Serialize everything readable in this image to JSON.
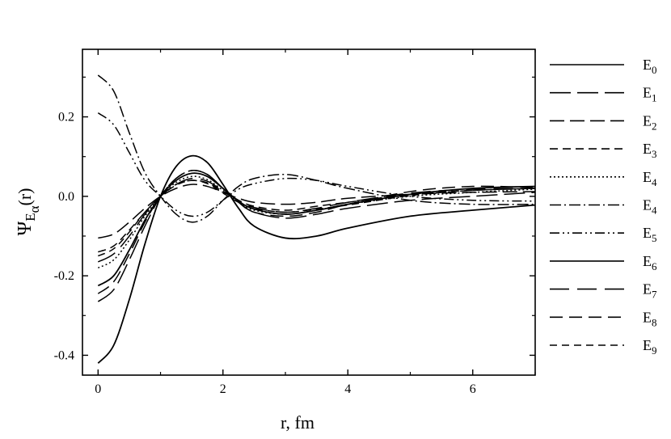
{
  "chart_data": {
    "type": "line",
    "title": "",
    "xlabel": "r, fm",
    "ylabel": "Ψ",
    "ylabel_sub": "E",
    "ylabel_subsub": "α",
    "ylabel_arg": "(r)",
    "xlim": [
      -0.25,
      7.0
    ],
    "ylim": [
      -0.45,
      0.37
    ],
    "xticks": [
      0,
      2,
      4,
      6
    ],
    "xtick_labels": [
      "0",
      "2",
      "4",
      "6"
    ],
    "yticks": [
      -0.4,
      -0.2,
      0.0,
      0.2
    ],
    "ytick_labels": [
      "-0.4",
      "-0.2",
      "0.0",
      "0.2"
    ],
    "grid": false,
    "legend_position": "right",
    "series": [
      {
        "name": "E",
        "sub": "0",
        "dash": "",
        "x": [
          0,
          0.25,
          0.5,
          0.75,
          1.0,
          1.25,
          1.5,
          1.75,
          2.0,
          2.25,
          2.5,
          3.0,
          3.5,
          4.0,
          5.0,
          6.0,
          7.0
        ],
        "values": [
          -0.42,
          -0.375,
          -0.26,
          -0.12,
          0.0,
          0.075,
          0.102,
          0.085,
          0.03,
          -0.03,
          -0.075,
          -0.105,
          -0.1,
          -0.08,
          -0.05,
          -0.035,
          -0.022
        ]
      },
      {
        "name": "E",
        "sub": "1",
        "dash": "26 8",
        "x": [
          0,
          0.25,
          0.5,
          0.75,
          1.0,
          1.25,
          1.5,
          1.75,
          2.0,
          2.25,
          2.5,
          3.0,
          3.5,
          4.0,
          5.0,
          6.0,
          7.0
        ],
        "values": [
          -0.265,
          -0.235,
          -0.16,
          -0.075,
          0.0,
          0.045,
          0.065,
          0.055,
          0.02,
          -0.015,
          -0.04,
          -0.055,
          -0.045,
          -0.03,
          -0.01,
          0.0,
          0.01
        ]
      },
      {
        "name": "E",
        "sub": "2",
        "dash": "18 7",
        "x": [
          0,
          0.25,
          0.5,
          0.75,
          1.0,
          1.25,
          1.5,
          1.75,
          2.0,
          2.25,
          2.5,
          3.0,
          3.5,
          4.0,
          5.0,
          6.0,
          7.0
        ],
        "values": [
          -0.105,
          -0.095,
          -0.065,
          -0.03,
          0.0,
          0.02,
          0.03,
          0.025,
          0.01,
          -0.005,
          -0.015,
          -0.02,
          -0.015,
          -0.005,
          0.005,
          0.01,
          0.012
        ]
      },
      {
        "name": "E",
        "sub": "3",
        "dash": "10 6",
        "x": [
          0,
          0.25,
          0.5,
          0.75,
          1.0,
          1.25,
          1.5,
          1.75,
          2.0,
          2.25,
          2.5,
          3.0,
          3.5,
          4.0,
          5.0,
          6.0,
          7.0
        ],
        "values": [
          -0.14,
          -0.125,
          -0.085,
          -0.04,
          0.0,
          0.03,
          0.04,
          0.034,
          0.012,
          -0.01,
          -0.025,
          -0.035,
          -0.025,
          -0.015,
          0.005,
          0.015,
          0.02
        ]
      },
      {
        "name": "E",
        "sub": "4",
        "dash": "2 3",
        "x": [
          0,
          0.25,
          0.5,
          0.75,
          1.0,
          1.25,
          1.5,
          1.75,
          2.0,
          2.25,
          2.5,
          3.0,
          3.5,
          4.0,
          5.0,
          6.0,
          7.0
        ],
        "values": [
          -0.18,
          -0.16,
          -0.11,
          -0.05,
          0.0,
          0.035,
          0.05,
          0.042,
          0.015,
          -0.015,
          -0.035,
          -0.045,
          -0.035,
          -0.02,
          0.0,
          0.01,
          0.018
        ]
      },
      {
        "name": "E",
        "sub": "4",
        "dash": "14 4 2 4",
        "x": [
          0,
          0.25,
          0.5,
          0.75,
          1.0,
          1.25,
          1.5,
          1.75,
          2.0,
          2.25,
          2.5,
          3.0,
          3.5,
          4.0,
          5.0,
          6.0,
          7.0
        ],
        "values": [
          0.305,
          0.265,
          0.16,
          0.06,
          0.0,
          -0.045,
          -0.065,
          -0.05,
          -0.01,
          0.025,
          0.045,
          0.055,
          0.04,
          0.02,
          -0.01,
          -0.02,
          -0.02
        ]
      },
      {
        "name": "E",
        "sub": "5",
        "dash": "12 4 2 4 2 4",
        "x": [
          0,
          0.25,
          0.5,
          0.75,
          1.0,
          1.25,
          1.5,
          1.75,
          2.0,
          2.25,
          2.5,
          3.0,
          3.5,
          4.0,
          5.0,
          6.0,
          7.0
        ],
        "values": [
          0.21,
          0.18,
          0.11,
          0.04,
          0.0,
          -0.035,
          -0.05,
          -0.04,
          -0.01,
          0.018,
          0.032,
          0.045,
          0.04,
          0.025,
          0.0,
          -0.01,
          -0.012
        ]
      },
      {
        "name": "E",
        "sub": "6",
        "dash": "",
        "x": [
          0,
          0.25,
          0.5,
          0.75,
          1.0,
          1.25,
          1.5,
          1.75,
          2.0,
          2.25,
          2.5,
          3.0,
          3.5,
          4.0,
          5.0,
          6.0,
          7.0
        ],
        "values": [
          -0.225,
          -0.2,
          -0.135,
          -0.06,
          0.0,
          0.04,
          0.058,
          0.05,
          0.02,
          -0.012,
          -0.032,
          -0.045,
          -0.035,
          -0.02,
          0.005,
          0.02,
          0.025
        ]
      },
      {
        "name": "E",
        "sub": "7",
        "dash": "24 10",
        "x": [
          0,
          0.25,
          0.5,
          0.75,
          1.0,
          1.25,
          1.5,
          1.75,
          2.0,
          2.25,
          2.5,
          3.0,
          3.5,
          4.0,
          5.0,
          6.0,
          7.0
        ],
        "values": [
          -0.165,
          -0.145,
          -0.1,
          -0.045,
          0.0,
          0.03,
          0.045,
          0.038,
          0.014,
          -0.01,
          -0.028,
          -0.04,
          -0.03,
          -0.015,
          0.008,
          0.018,
          0.02
        ]
      },
      {
        "name": "E",
        "sub": "8",
        "dash": "16 8",
        "x": [
          0,
          0.25,
          0.5,
          0.75,
          1.0,
          1.25,
          1.5,
          1.75,
          2.0,
          2.25,
          2.5,
          3.0,
          3.5,
          4.0,
          5.0,
          6.0,
          7.0
        ],
        "values": [
          -0.245,
          -0.215,
          -0.145,
          -0.065,
          0.0,
          0.045,
          0.065,
          0.055,
          0.02,
          -0.015,
          -0.04,
          -0.05,
          -0.04,
          -0.02,
          0.012,
          0.025,
          0.022
        ]
      },
      {
        "name": "E",
        "sub": "9",
        "dash": "9 6",
        "x": [
          0,
          0.25,
          0.5,
          0.75,
          1.0,
          1.25,
          1.5,
          1.75,
          2.0,
          2.25,
          2.5,
          3.0,
          3.5,
          4.0,
          5.0,
          6.0,
          7.0
        ],
        "values": [
          -0.15,
          -0.132,
          -0.09,
          -0.04,
          0.0,
          0.028,
          0.04,
          0.032,
          0.008,
          -0.015,
          -0.03,
          -0.04,
          -0.032,
          -0.022,
          0.002,
          0.015,
          0.02
        ]
      }
    ]
  }
}
